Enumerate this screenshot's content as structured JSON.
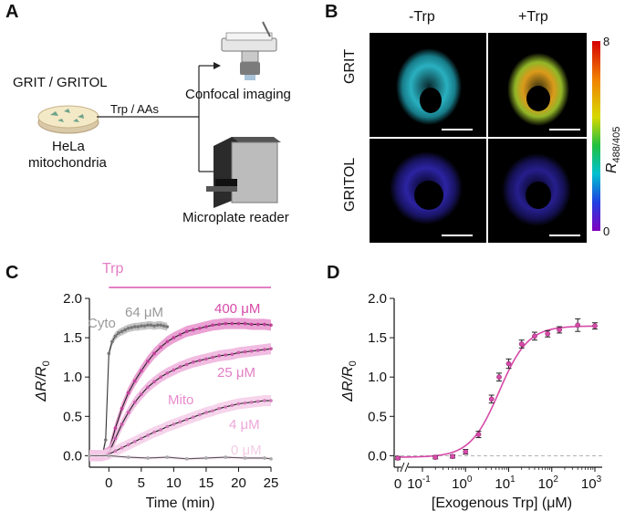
{
  "panels": {
    "a": {
      "letter": "A",
      "sensors": "GRIT / GRITOL",
      "cells": "HeLa",
      "cells2": "mitochondria",
      "treatment": "Trp / AAs",
      "method1": "Confocal imaging",
      "method2": "Microplate reader"
    },
    "b": {
      "letter": "B",
      "col1": "-Trp",
      "col2": "+Trp",
      "row1": "GRIT",
      "row2": "GRITOL",
      "cbar_label": "R",
      "cbar_sub": "488/405",
      "cbar_max": "8",
      "cbar_min": "0"
    },
    "c": {
      "letter": "C",
      "trp_bar": "Trp",
      "cyto": "Cyto",
      "mito": "Mito",
      "conc_labels": [
        "64 μM",
        "400 μM",
        "25 μM",
        "4 μM",
        "0 μM"
      ]
    },
    "d": {
      "letter": "D"
    }
  },
  "colors": {
    "pink": "#e37ec4",
    "magenta": "#d64aa8",
    "gray": "#9a9a9a",
    "cyan": "#3fd0e0",
    "blue": "#3a2fd8"
  },
  "chart_data": [
    {
      "type": "line",
      "xlabel": "Time (min)",
      "ylabel": "ΔR/R0",
      "xlim": [
        -3,
        25
      ],
      "ylim": [
        -0.1,
        2.0
      ],
      "xticks": [
        0,
        5,
        10,
        15,
        20,
        25
      ],
      "yticks": [
        0.0,
        0.5,
        1.0,
        1.5,
        2.0
      ],
      "series": [
        {
          "name": "Cyto 64 μM",
          "x": [
            -3,
            -2,
            -1,
            -0.5,
            0,
            0.5,
            1,
            1.5,
            2,
            2.5,
            3,
            3.5,
            4,
            4.5,
            5,
            5.5,
            6,
            6.5,
            7,
            7.5,
            8,
            8.5,
            9
          ],
          "y": [
            0,
            0,
            0,
            0.2,
            1.3,
            1.45,
            1.52,
            1.56,
            1.58,
            1.6,
            1.62,
            1.63,
            1.64,
            1.64,
            1.65,
            1.65,
            1.66,
            1.66,
            1.65,
            1.66,
            1.66,
            1.65,
            1.64
          ]
        },
        {
          "name": "Mito 400 μM",
          "x": [
            -3,
            -2,
            -1,
            0,
            1,
            2,
            3,
            4,
            5,
            6,
            7,
            8,
            9,
            10,
            11,
            12,
            13,
            14,
            15,
            16,
            17,
            18,
            19,
            20,
            21,
            22,
            23,
            24,
            25
          ],
          "y": [
            0,
            0,
            0,
            0.05,
            0.35,
            0.6,
            0.8,
            0.95,
            1.08,
            1.2,
            1.3,
            1.38,
            1.45,
            1.5,
            1.54,
            1.58,
            1.6,
            1.62,
            1.64,
            1.66,
            1.67,
            1.68,
            1.68,
            1.68,
            1.68,
            1.67,
            1.67,
            1.67,
            1.66
          ]
        },
        {
          "name": "Mito 25 μM",
          "x": [
            -3,
            -2,
            -1,
            0,
            1,
            2,
            3,
            4,
            5,
            6,
            7,
            8,
            9,
            10,
            11,
            12,
            13,
            14,
            15,
            16,
            17,
            18,
            19,
            20,
            21,
            22,
            23,
            24,
            25
          ],
          "y": [
            0,
            0,
            0,
            0.03,
            0.22,
            0.4,
            0.55,
            0.68,
            0.78,
            0.87,
            0.94,
            1.0,
            1.05,
            1.09,
            1.13,
            1.16,
            1.19,
            1.21,
            1.23,
            1.25,
            1.27,
            1.28,
            1.29,
            1.31,
            1.32,
            1.33,
            1.34,
            1.35,
            1.36
          ]
        },
        {
          "name": "Mito 4 μM",
          "x": [
            -3,
            -2,
            -1,
            0,
            1,
            2,
            3,
            4,
            5,
            6,
            7,
            8,
            9,
            10,
            11,
            12,
            13,
            14,
            15,
            16,
            17,
            18,
            19,
            20,
            21,
            22,
            23,
            24,
            25
          ],
          "y": [
            0,
            0,
            0,
            0.02,
            0.06,
            0.1,
            0.14,
            0.18,
            0.22,
            0.26,
            0.3,
            0.33,
            0.37,
            0.4,
            0.43,
            0.46,
            0.49,
            0.52,
            0.55,
            0.57,
            0.6,
            0.62,
            0.64,
            0.66,
            0.67,
            0.68,
            0.69,
            0.7,
            0.7
          ]
        },
        {
          "name": "Mito 0 μM",
          "x": [
            -3,
            0,
            3,
            6,
            9,
            12,
            15,
            18,
            21,
            24,
            25
          ],
          "y": [
            0,
            0,
            -0.02,
            -0.03,
            -0.02,
            -0.04,
            -0.03,
            -0.02,
            -0.03,
            -0.03,
            -0.04
          ]
        }
      ]
    },
    {
      "type": "scatter",
      "xlabel": "[Exogenous Trp] (μM)",
      "ylabel": "ΔR/R0",
      "xscale": "log",
      "ylim": [
        -0.1,
        2.0
      ],
      "yticks": [
        0.0,
        0.5,
        1.0,
        1.5,
        2.0
      ],
      "xtick_labels": [
        "0",
        "10",
        "10",
        "10",
        "10",
        "10"
      ],
      "xtick_exponents": [
        "",
        "-1",
        "0",
        "1",
        "2",
        "3"
      ],
      "x": [
        0,
        0.2,
        0.5,
        1,
        2,
        4,
        6,
        10,
        20,
        40,
        80,
        150,
        400,
        1000
      ],
      "y": [
        -0.03,
        -0.02,
        -0.01,
        0.05,
        0.27,
        0.72,
        1.0,
        1.17,
        1.42,
        1.52,
        1.55,
        1.6,
        1.66,
        1.65
      ],
      "err": [
        0.02,
        0.02,
        0.02,
        0.03,
        0.04,
        0.05,
        0.05,
        0.06,
        0.05,
        0.05,
        0.04,
        0.04,
        0.08,
        0.04
      ],
      "fit": true
    }
  ]
}
